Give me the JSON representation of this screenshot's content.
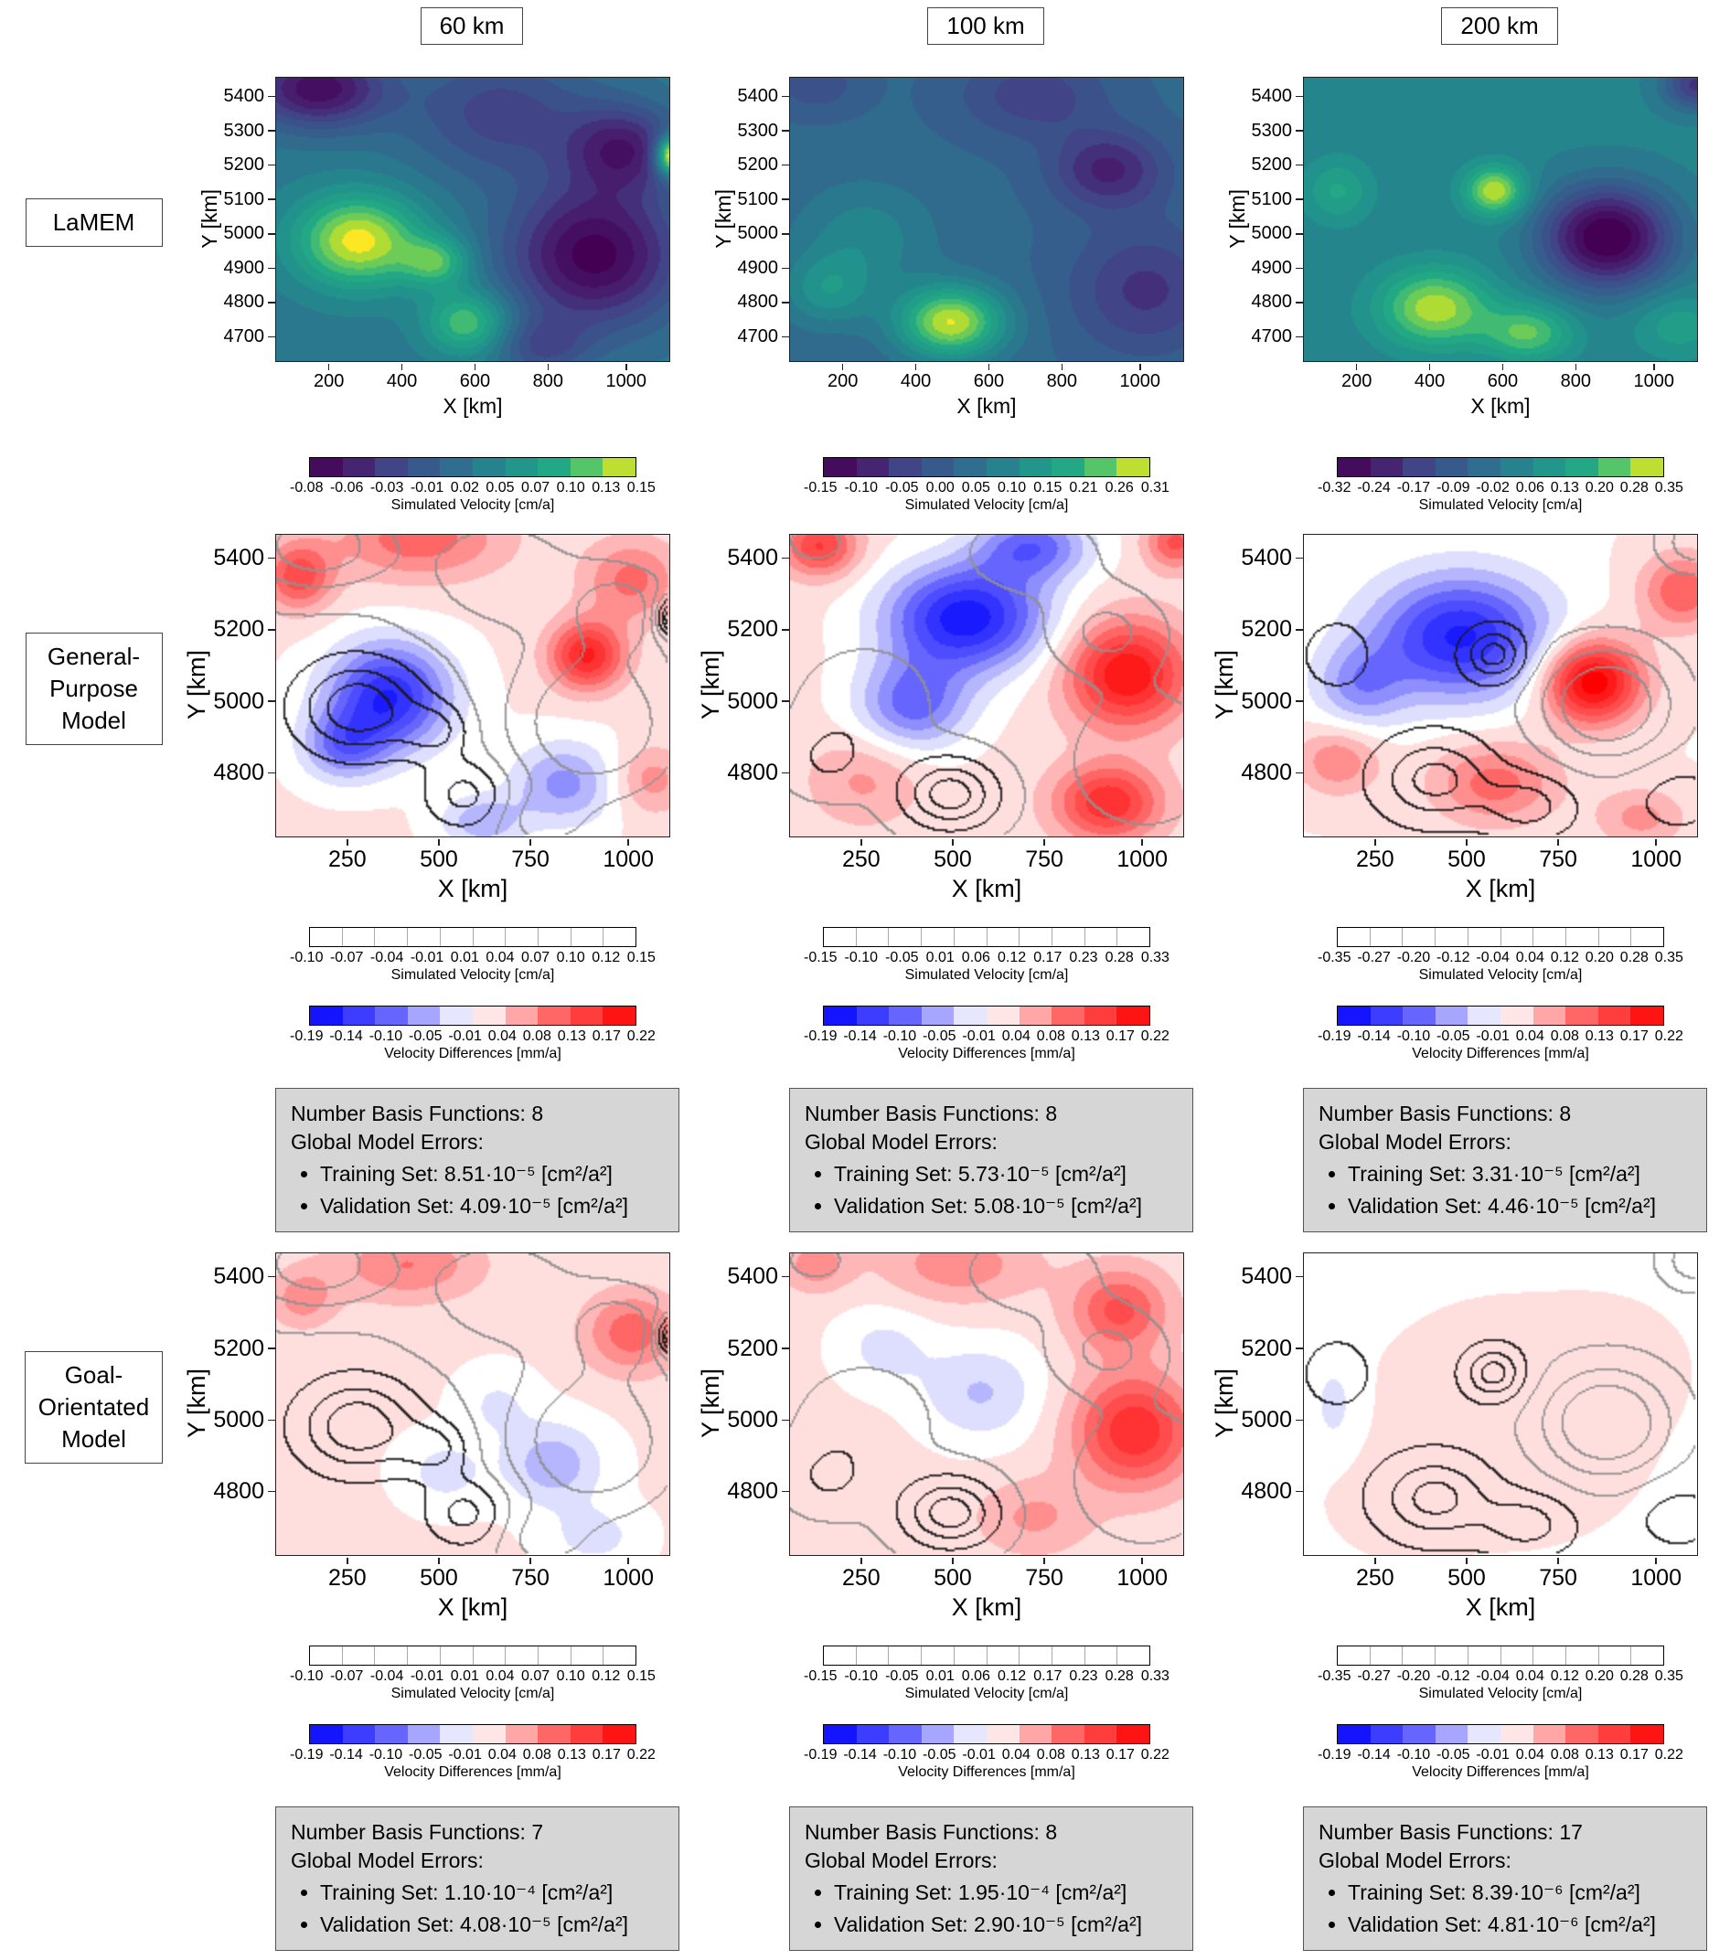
{
  "columns": [
    {
      "title": "60 km"
    },
    {
      "title": "100 km"
    },
    {
      "title": "200 km"
    }
  ],
  "row_labels": [
    "LaMEM",
    "General-\nPurpose\nModel",
    "Goal-\nOrientated\nModel"
  ],
  "axes": {
    "row1": {
      "x_label": "X [km]",
      "y_label": "Y [km]",
      "x_ticks": [
        "200",
        "400",
        "600",
        "800",
        "1000"
      ],
      "y_ticks": [
        "5400",
        "5300",
        "5200",
        "5100",
        "5000",
        "4900",
        "4800",
        "4700"
      ]
    },
    "row23": {
      "x_label": "X [km]",
      "y_label": "Y [km]",
      "x_ticks": [
        "250",
        "500",
        "750",
        "1000"
      ],
      "y_ticks": [
        "5400",
        "5200",
        "5000",
        "4800"
      ]
    }
  },
  "colorbars": {
    "sim_lamem": [
      {
        "ticks": [
          "-0.08",
          "-0.06",
          "-0.03",
          "-0.01",
          "0.02",
          "0.05",
          "0.07",
          "0.10",
          "0.13",
          "0.15"
        ],
        "label": "Simulated Velocity [cm/a]"
      },
      {
        "ticks": [
          "-0.15",
          "-0.10",
          "-0.05",
          "0.00",
          "0.05",
          "0.10",
          "0.15",
          "0.21",
          "0.26",
          "0.31"
        ],
        "label": "Simulated Velocity [cm/a]"
      },
      {
        "ticks": [
          "-0.32",
          "-0.24",
          "-0.17",
          "-0.09",
          "-0.02",
          "0.06",
          "0.13",
          "0.20",
          "0.28",
          "0.35"
        ],
        "label": "Simulated Velocity [cm/a]"
      }
    ],
    "sim_model": [
      {
        "ticks": [
          "-0.10",
          "-0.07",
          "-0.04",
          "-0.01",
          "0.01",
          "0.04",
          "0.07",
          "0.10",
          "0.12",
          "0.15"
        ],
        "label": "Simulated Velocity [cm/a]"
      },
      {
        "ticks": [
          "-0.15",
          "-0.10",
          "-0.05",
          "0.01",
          "0.06",
          "0.12",
          "0.17",
          "0.23",
          "0.28",
          "0.33"
        ],
        "label": "Simulated Velocity [cm/a]"
      },
      {
        "ticks": [
          "-0.35",
          "-0.27",
          "-0.20",
          "-0.12",
          "-0.04",
          "0.04",
          "0.12",
          "0.20",
          "0.28",
          "0.35"
        ],
        "label": "Simulated Velocity [cm/a]"
      }
    ],
    "diff": {
      "ticks": [
        "-0.19",
        "-0.14",
        "-0.10",
        "-0.05",
        "-0.01",
        "0.04",
        "0.08",
        "0.13",
        "0.17",
        "0.22"
      ],
      "label": "Velocity Differences [mm/a]"
    }
  },
  "info_boxes": {
    "general_purpose": [
      {
        "basis": "Number Basis Functions: 8",
        "errors_title": "Global Model Errors:",
        "training": "Training Set: 8.51·10⁻⁵ [cm²/a²]",
        "validation": "Validation Set: 4.09·10⁻⁵ [cm²/a²]"
      },
      {
        "basis": "Number Basis Functions: 8",
        "errors_title": "Global Model Errors:",
        "training": "Training Set: 5.73·10⁻⁵ [cm²/a²]",
        "validation": "Validation Set: 5.08·10⁻⁵ [cm²/a²]"
      },
      {
        "basis": "Number Basis Functions: 8",
        "errors_title": "Global Model Errors:",
        "training": "Training Set: 3.31·10⁻⁵ [cm²/a²]",
        "validation": "Validation Set: 4.46·10⁻⁵ [cm²/a²]"
      }
    ],
    "goal_orientated": [
      {
        "basis": "Number Basis Functions: 7",
        "errors_title": "Global Model Errors:",
        "training": "Training Set: 1.10·10⁻⁴ [cm²/a²]",
        "validation": "Validation Set: 4.08·10⁻⁵ [cm²/a²]"
      },
      {
        "basis": "Number Basis Functions: 8",
        "errors_title": "Global Model Errors:",
        "training": "Training Set: 1.95·10⁻⁴ [cm²/a²]",
        "validation": "Validation Set: 2.90·10⁻⁵ [cm²/a²]"
      },
      {
        "basis": "Number Basis Functions: 17",
        "errors_title": "Global Model Errors:",
        "training": "Training Set: 8.39·10⁻⁶ [cm²/a²]",
        "validation": "Validation Set: 4.81·10⁻⁶ [cm²/a²]"
      }
    ]
  },
  "palette": {
    "viridis": [
      [
        0,
        "#440154"
      ],
      [
        0.13,
        "#471e6e"
      ],
      [
        0.25,
        "#414487"
      ],
      [
        0.38,
        "#355f8d"
      ],
      [
        0.5,
        "#2a788e"
      ],
      [
        0.62,
        "#21918c"
      ],
      [
        0.75,
        "#22a884"
      ],
      [
        0.85,
        "#54c568"
      ],
      [
        0.93,
        "#a5db36"
      ],
      [
        1,
        "#fde725"
      ]
    ],
    "bwr": [
      [
        0,
        "#0000ff"
      ],
      [
        0.25,
        "#6666ff"
      ],
      [
        0.45,
        "#e6e6ff"
      ],
      [
        0.5,
        "#ffffff"
      ],
      [
        0.55,
        "#ffe6e6"
      ],
      [
        0.75,
        "#ff6666"
      ],
      [
        1,
        "#ff0000"
      ]
    ]
  },
  "chart_data": [
    {
      "id": "lamem_60km",
      "type": "heatmap",
      "model": "LaMEM",
      "depth": "60 km",
      "xlabel": "X [km]",
      "ylabel": "Y [km]",
      "x_range_km": [
        50,
        1100
      ],
      "y_range_km": [
        4650,
        5450
      ],
      "value_range_cm_a": [
        -0.08,
        0.15
      ],
      "units": "cm/a",
      "colormap": "viridis",
      "colorbar_label": "Simulated Velocity [cm/a]",
      "base_level": 0.5,
      "features": [
        {
          "x": 270,
          "y": 4990,
          "rx": 170,
          "ry": 130,
          "a": 0.5
        },
        {
          "x": 480,
          "y": 4930,
          "rx": 90,
          "ry": 70,
          "a": 0.3
        },
        {
          "x": 560,
          "y": 4760,
          "rx": 110,
          "ry": 90,
          "a": 0.35
        },
        {
          "x": 160,
          "y": 5420,
          "rx": 180,
          "ry": 110,
          "a": -0.45
        },
        {
          "x": 650,
          "y": 5350,
          "rx": 250,
          "ry": 180,
          "a": -0.25
        },
        {
          "x": 900,
          "y": 4950,
          "rx": 230,
          "ry": 200,
          "a": -0.5
        },
        {
          "x": 980,
          "y": 5250,
          "rx": 150,
          "ry": 120,
          "a": -0.35
        },
        {
          "x": 1110,
          "y": 5230,
          "rx": 45,
          "ry": 55,
          "a": 0.75
        },
        {
          "x": 760,
          "y": 4690,
          "rx": 120,
          "ry": 80,
          "a": -0.2
        }
      ]
    },
    {
      "id": "lamem_100km",
      "type": "heatmap",
      "model": "LaMEM",
      "depth": "100 km",
      "xlabel": "X [km]",
      "ylabel": "Y [km]",
      "x_range_km": [
        50,
        1100
      ],
      "y_range_km": [
        4650,
        5450
      ],
      "value_range_cm_a": [
        -0.15,
        0.31
      ],
      "units": "cm/a",
      "colormap": "viridis",
      "colorbar_label": "Simulated Velocity [cm/a]",
      "base_level": 0.42,
      "features": [
        {
          "x": 480,
          "y": 4760,
          "rx": 140,
          "ry": 100,
          "a": 0.55
        },
        {
          "x": 250,
          "y": 5000,
          "rx": 180,
          "ry": 150,
          "a": 0.15
        },
        {
          "x": 150,
          "y": 4850,
          "rx": 120,
          "ry": 100,
          "a": 0.2
        },
        {
          "x": 900,
          "y": 5190,
          "rx": 150,
          "ry": 110,
          "a": -0.28
        },
        {
          "x": 1000,
          "y": 4850,
          "rx": 200,
          "ry": 180,
          "a": -0.22
        },
        {
          "x": 700,
          "y": 5400,
          "rx": 200,
          "ry": 120,
          "a": -0.18
        },
        {
          "x": 120,
          "y": 5430,
          "rx": 120,
          "ry": 80,
          "a": -0.12
        }
      ]
    },
    {
      "id": "lamem_200km",
      "type": "heatmap",
      "model": "LaMEM",
      "depth": "200 km",
      "xlabel": "X [km]",
      "ylabel": "Y [km]",
      "x_range_km": [
        50,
        1100
      ],
      "y_range_km": [
        4650,
        5450
      ],
      "value_range_cm_a": [
        -0.32,
        0.35
      ],
      "units": "cm/a",
      "colormap": "viridis",
      "colorbar_label": "Simulated Velocity [cm/a]",
      "base_level": 0.55,
      "features": [
        {
          "x": 560,
          "y": 5130,
          "rx": 80,
          "ry": 70,
          "a": 0.42
        },
        {
          "x": 400,
          "y": 4800,
          "rx": 150,
          "ry": 110,
          "a": 0.4
        },
        {
          "x": 650,
          "y": 4730,
          "rx": 120,
          "ry": 80,
          "a": 0.3
        },
        {
          "x": 860,
          "y": 5000,
          "rx": 170,
          "ry": 140,
          "a": -0.6
        },
        {
          "x": 1100,
          "y": 5430,
          "rx": 90,
          "ry": 70,
          "a": -0.35
        },
        {
          "x": 140,
          "y": 5130,
          "rx": 90,
          "ry": 90,
          "a": 0.18
        },
        {
          "x": 1050,
          "y": 4750,
          "rx": 120,
          "ry": 90,
          "a": 0.15
        }
      ]
    },
    {
      "id": "gp_60km",
      "type": "difference-map",
      "model": "General-Purpose Model",
      "depth": "60 km",
      "xlabel": "X [km]",
      "ylabel": "Y [km]",
      "x_range_km": [
        50,
        1100
      ],
      "y_range_km": [
        4650,
        5450
      ],
      "simulated_velocity_range_cm_a": [
        -0.1,
        0.15
      ],
      "difference_range_mm_a": [
        -0.19,
        0.22
      ],
      "units": "mm/a",
      "colormap": "bwr",
      "colorbar_label": "Velocity Differences [mm/a]",
      "base_level": 0.54,
      "contour_overlay": "lamem_60km",
      "contour_levels": [
        0.18,
        0.33,
        0.48,
        0.63,
        0.78,
        0.9
      ],
      "features": [
        {
          "x": 350,
          "y": 5020,
          "rx": 160,
          "ry": 140,
          "a": -0.45
        },
        {
          "x": 230,
          "y": 4890,
          "rx": 110,
          "ry": 90,
          "a": -0.25
        },
        {
          "x": 430,
          "y": 5440,
          "rx": 230,
          "ry": 110,
          "a": 0.22
        },
        {
          "x": 110,
          "y": 5340,
          "rx": 90,
          "ry": 90,
          "a": 0.28
        },
        {
          "x": 880,
          "y": 5130,
          "rx": 100,
          "ry": 90,
          "a": 0.38
        },
        {
          "x": 1000,
          "y": 5330,
          "rx": 130,
          "ry": 110,
          "a": 0.2
        },
        {
          "x": 820,
          "y": 4790,
          "rx": 140,
          "ry": 110,
          "a": -0.22
        },
        {
          "x": 600,
          "y": 4690,
          "rx": 110,
          "ry": 70,
          "a": -0.18
        },
        {
          "x": 1050,
          "y": 4800,
          "rx": 100,
          "ry": 90,
          "a": 0.15
        }
      ]
    },
    {
      "id": "gp_100km",
      "type": "difference-map",
      "model": "General-Purpose Model",
      "depth": "100 km",
      "xlabel": "X [km]",
      "ylabel": "Y [km]",
      "x_range_km": [
        50,
        1100
      ],
      "y_range_km": [
        4650,
        5450
      ],
      "simulated_velocity_range_cm_a": [
        -0.15,
        0.33
      ],
      "difference_range_mm_a": [
        -0.19,
        0.22
      ],
      "units": "mm/a",
      "colormap": "bwr",
      "colorbar_label": "Velocity Differences [mm/a]",
      "base_level": 0.55,
      "contour_overlay": "lamem_100km",
      "contour_levels": [
        0.18,
        0.33,
        0.48,
        0.63,
        0.78,
        0.9
      ],
      "features": [
        {
          "x": 520,
          "y": 5230,
          "rx": 210,
          "ry": 140,
          "a": -0.5
        },
        {
          "x": 380,
          "y": 5000,
          "rx": 150,
          "ry": 120,
          "a": -0.3
        },
        {
          "x": 700,
          "y": 5420,
          "rx": 150,
          "ry": 90,
          "a": -0.3
        },
        {
          "x": 950,
          "y": 5080,
          "rx": 160,
          "ry": 140,
          "a": 0.42
        },
        {
          "x": 900,
          "y": 4740,
          "rx": 140,
          "ry": 100,
          "a": 0.35
        },
        {
          "x": 130,
          "y": 5420,
          "rx": 100,
          "ry": 80,
          "a": 0.3
        },
        {
          "x": 250,
          "y": 4800,
          "rx": 150,
          "ry": 120,
          "a": 0.12
        },
        {
          "x": 1080,
          "y": 5430,
          "rx": 80,
          "ry": 70,
          "a": 0.25
        }
      ]
    },
    {
      "id": "gp_200km",
      "type": "difference-map",
      "model": "General-Purpose Model",
      "depth": "200 km",
      "xlabel": "X [km]",
      "ylabel": "Y [km]",
      "x_range_km": [
        50,
        1100
      ],
      "y_range_km": [
        4650,
        5450
      ],
      "simulated_velocity_range_cm_a": [
        -0.35,
        0.35
      ],
      "difference_range_mm_a": [
        -0.19,
        0.22
      ],
      "units": "mm/a",
      "colormap": "bwr",
      "colorbar_label": "Velocity Differences [mm/a]",
      "base_level": 0.53,
      "contour_overlay": "lamem_200km",
      "contour_levels": [
        0.18,
        0.33,
        0.48,
        0.63,
        0.78,
        0.9
      ],
      "features": [
        {
          "x": 470,
          "y": 5180,
          "rx": 230,
          "ry": 160,
          "a": -0.45
        },
        {
          "x": 200,
          "y": 5050,
          "rx": 120,
          "ry": 110,
          "a": -0.2
        },
        {
          "x": 820,
          "y": 5060,
          "rx": 130,
          "ry": 110,
          "a": 0.5
        },
        {
          "x": 1060,
          "y": 5300,
          "rx": 110,
          "ry": 100,
          "a": 0.25
        },
        {
          "x": 560,
          "y": 4790,
          "rx": 170,
          "ry": 110,
          "a": 0.22
        },
        {
          "x": 140,
          "y": 4850,
          "rx": 110,
          "ry": 90,
          "a": 0.18
        },
        {
          "x": 950,
          "y": 4700,
          "rx": 120,
          "ry": 80,
          "a": 0.15
        }
      ]
    },
    {
      "id": "go_60km",
      "type": "difference-map",
      "model": "Goal-Orientated Model",
      "depth": "60 km",
      "xlabel": "X [km]",
      "ylabel": "Y [km]",
      "x_range_km": [
        50,
        1100
      ],
      "y_range_km": [
        4650,
        5450
      ],
      "simulated_velocity_range_cm_a": [
        -0.1,
        0.15
      ],
      "difference_range_mm_a": [
        -0.19,
        0.22
      ],
      "units": "mm/a",
      "colormap": "bwr",
      "colorbar_label": "Velocity Differences [mm/a]",
      "base_level": 0.54,
      "contour_overlay": "lamem_60km",
      "contour_levels": [
        0.18,
        0.33,
        0.48,
        0.63,
        0.78,
        0.9
      ],
      "features": [
        {
          "x": 400,
          "y": 5420,
          "rx": 200,
          "ry": 100,
          "a": 0.18
        },
        {
          "x": 1000,
          "y": 5240,
          "rx": 130,
          "ry": 110,
          "a": 0.22
        },
        {
          "x": 120,
          "y": 5330,
          "rx": 90,
          "ry": 80,
          "a": 0.15
        },
        {
          "x": 790,
          "y": 4890,
          "rx": 130,
          "ry": 110,
          "a": -0.18
        },
        {
          "x": 500,
          "y": 4870,
          "rx": 110,
          "ry": 90,
          "a": -0.1
        },
        {
          "x": 640,
          "y": 5050,
          "rx": 100,
          "ry": 90,
          "a": -0.08
        },
        {
          "x": 900,
          "y": 4700,
          "rx": 120,
          "ry": 80,
          "a": -0.1
        }
      ]
    },
    {
      "id": "go_100km",
      "type": "difference-map",
      "model": "Goal-Orientated Model",
      "depth": "100 km",
      "xlabel": "X [km]",
      "ylabel": "Y [km]",
      "x_range_km": [
        50,
        1100
      ],
      "y_range_km": [
        4650,
        5450
      ],
      "simulated_velocity_range_cm_a": [
        -0.15,
        0.33
      ],
      "difference_range_mm_a": [
        -0.19,
        0.22
      ],
      "units": "mm/a",
      "colormap": "bwr",
      "colorbar_label": "Velocity Differences [mm/a]",
      "base_level": 0.55,
      "contour_overlay": "lamem_100km",
      "contour_levels": [
        0.18,
        0.33,
        0.48,
        0.63,
        0.78,
        0.9
      ],
      "features": [
        {
          "x": 970,
          "y": 4980,
          "rx": 160,
          "ry": 150,
          "a": 0.35
        },
        {
          "x": 930,
          "y": 5300,
          "rx": 130,
          "ry": 110,
          "a": 0.25
        },
        {
          "x": 500,
          "y": 5420,
          "rx": 200,
          "ry": 100,
          "a": 0.15
        },
        {
          "x": 560,
          "y": 5080,
          "rx": 160,
          "ry": 130,
          "a": -0.15
        },
        {
          "x": 300,
          "y": 5200,
          "rx": 130,
          "ry": 110,
          "a": -0.1
        },
        {
          "x": 700,
          "y": 4750,
          "rx": 150,
          "ry": 100,
          "a": 0.12
        },
        {
          "x": 120,
          "y": 5420,
          "rx": 90,
          "ry": 70,
          "a": 0.15
        }
      ]
    },
    {
      "id": "go_200km",
      "type": "difference-map",
      "model": "Goal-Orientated Model",
      "depth": "200 km",
      "xlabel": "X [km]",
      "ylabel": "Y [km]",
      "x_range_km": [
        50,
        1100
      ],
      "y_range_km": [
        4650,
        5450
      ],
      "simulated_velocity_range_cm_a": [
        -0.35,
        0.35
      ],
      "difference_range_mm_a": [
        -0.19,
        0.22
      ],
      "units": "mm/a",
      "colormap": "bwr",
      "colorbar_label": "Velocity Differences [mm/a]",
      "base_level": 0.525,
      "contour_overlay": "lamem_200km",
      "contour_levels": [
        0.18,
        0.33,
        0.48,
        0.63,
        0.78,
        0.9
      ],
      "features": [
        {
          "x": 600,
          "y": 5000,
          "rx": 300,
          "ry": 250,
          "a": 0.04
        },
        {
          "x": 130,
          "y": 5050,
          "rx": 60,
          "ry": 120,
          "a": -0.08
        },
        {
          "x": 850,
          "y": 5150,
          "rx": 150,
          "ry": 120,
          "a": 0.05
        },
        {
          "x": 300,
          "y": 4800,
          "rx": 150,
          "ry": 120,
          "a": 0.03
        }
      ]
    }
  ]
}
